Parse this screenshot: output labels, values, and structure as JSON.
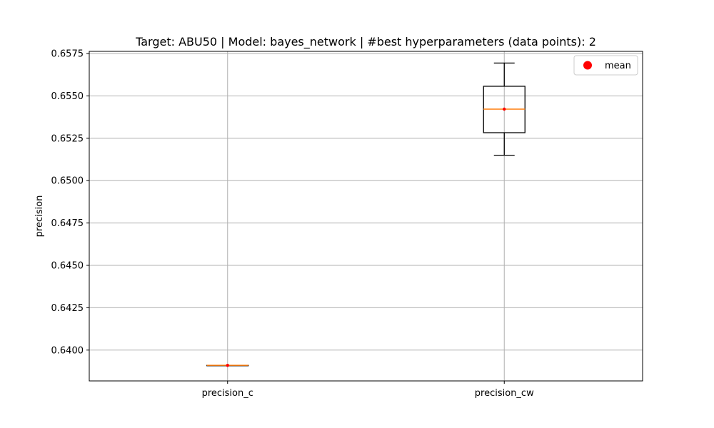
{
  "chart_data": {
    "type": "boxplot",
    "title": "Target: ABU50 | Model: bayes_network | #best hyperparameters (data points): 2",
    "ylabel": "precision",
    "xlabel": "",
    "categories": [
      "precision_c",
      "precision_cw"
    ],
    "ylim": [
      0.63818,
      0.65763
    ],
    "yticks": [
      0.64,
      0.6425,
      0.645,
      0.6475,
      0.65,
      0.6525,
      0.655,
      0.6575
    ],
    "ytick_labels": [
      "0.6400",
      "0.6425",
      "0.6450",
      "0.6475",
      "0.6500",
      "0.6525",
      "0.6550",
      "0.6575"
    ],
    "grid": true,
    "legend": {
      "placement": "top-right",
      "entries": [
        {
          "label": "mean",
          "marker": "circle",
          "color": "#ff0000"
        }
      ]
    },
    "boxes": [
      {
        "category": "precision_c",
        "whisker_low": 0.6391,
        "q1": 0.6391,
        "median": 0.6391,
        "q3": 0.6391,
        "whisker_high": 0.6391,
        "mean": 0.6391
      },
      {
        "category": "precision_cw",
        "whisker_low": 0.6515,
        "q1": 0.65283,
        "median": 0.65422,
        "q3": 0.65557,
        "whisker_high": 0.65694,
        "mean": 0.65422
      }
    ],
    "colors": {
      "box": "#000000",
      "median": "#ff7f0e",
      "mean": "#ff0000",
      "grid": "#b0b0b0"
    }
  }
}
